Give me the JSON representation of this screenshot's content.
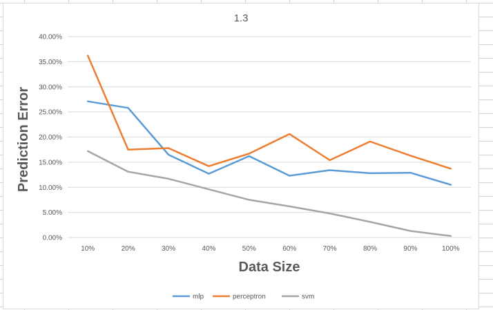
{
  "chart_data": {
    "type": "line",
    "title": "1.3",
    "xlabel": "Data Size",
    "ylabel": "Prediction Error",
    "categories": [
      "10%",
      "20%",
      "30%",
      "40%",
      "50%",
      "60%",
      "70%",
      "80%",
      "90%",
      "100%"
    ],
    "ylim": [
      0,
      0.4
    ],
    "yticks": [
      "0.00%",
      "5.00%",
      "10.00%",
      "15.00%",
      "20.00%",
      "25.00%",
      "30.00%",
      "35.00%",
      "40.00%"
    ],
    "grid": true,
    "legend": "bottom",
    "series": [
      {
        "name": "mlp",
        "color": "#5b9bd5",
        "values": [
          0.271,
          0.258,
          0.165,
          0.127,
          0.162,
          0.123,
          0.134,
          0.128,
          0.129,
          0.105
        ]
      },
      {
        "name": "perceptron",
        "color": "#ed7d31",
        "values": [
          0.362,
          0.175,
          0.178,
          0.142,
          0.167,
          0.206,
          0.154,
          0.191,
          0.163,
          0.137
        ]
      },
      {
        "name": "svm",
        "color": "#a5a5a5",
        "values": [
          0.172,
          0.131,
          0.117,
          0.096,
          0.075,
          0.062,
          0.048,
          0.031,
          0.013,
          0.003
        ]
      }
    ]
  }
}
